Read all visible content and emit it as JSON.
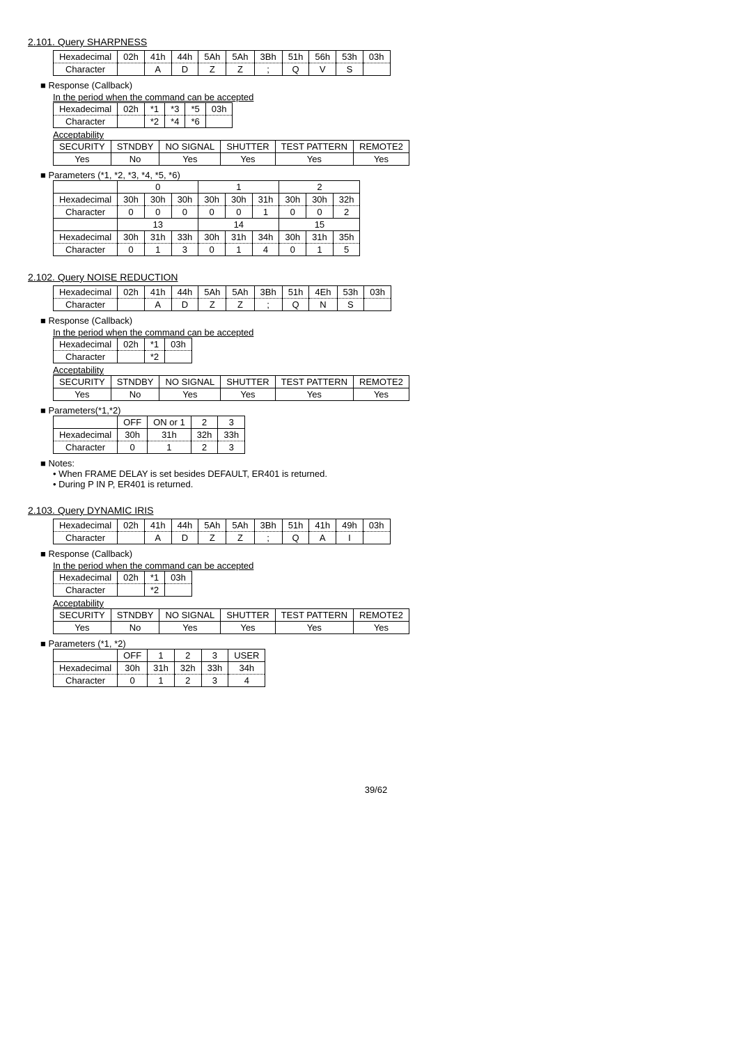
{
  "s1": {
    "title": "2.101. Query SHARPNESS",
    "cmd": {
      "r1": [
        "Hexadecimal",
        "02h",
        "41h",
        "44h",
        "5Ah",
        "5Ah",
        "3Bh",
        "51h",
        "56h",
        "53h",
        "03h"
      ],
      "r2": [
        "Character",
        "",
        "A",
        "D",
        "Z",
        "Z",
        ";",
        "Q",
        "V",
        "S",
        ""
      ]
    },
    "resp_hdr": "Response (Callback)",
    "resp_sub": "In the period when the command can be accepted",
    "resp_tbl": {
      "r1": [
        "Hexadecimal",
        "02h",
        "*1",
        "*3",
        "*5",
        "03h"
      ],
      "r2": [
        "Character",
        "",
        "*2",
        "*4",
        "*6",
        ""
      ]
    },
    "acc_hdr": "Acceptability",
    "acc_tbl": {
      "r1": [
        "SECURITY",
        "STNDBY",
        "NO SIGNAL",
        "SHUTTER",
        "TEST PATTERN",
        "REMOTE2"
      ],
      "r2": [
        "Yes",
        "No",
        "Yes",
        "Yes",
        "Yes",
        "Yes"
      ]
    },
    "param_hdr": "Parameters (*1, *2, *3, *4, *5, *6)",
    "param_tbl": {
      "h1": [
        "",
        "0",
        "",
        "",
        "1",
        "",
        "",
        "2",
        ""
      ],
      "r1": [
        "Hexadecimal",
        "30h",
        "30h",
        "30h",
        "30h",
        "30h",
        "31h",
        "30h",
        "30h",
        "32h"
      ],
      "r2": [
        "Character",
        "0",
        "0",
        "0",
        "0",
        "0",
        "1",
        "0",
        "0",
        "2"
      ],
      "h2": [
        "",
        "13",
        "",
        "",
        "14",
        "",
        "",
        "15",
        ""
      ],
      "r3": [
        "Hexadecimal",
        "30h",
        "31h",
        "33h",
        "30h",
        "31h",
        "34h",
        "30h",
        "31h",
        "35h"
      ],
      "r4": [
        "Character",
        "0",
        "1",
        "3",
        "0",
        "1",
        "4",
        "0",
        "1",
        "5"
      ]
    }
  },
  "s2": {
    "title": "2.102. Query NOISE REDUCTION",
    "cmd": {
      "r1": [
        "Hexadecimal",
        "02h",
        "41h",
        "44h",
        "5Ah",
        "5Ah",
        "3Bh",
        "51h",
        "4Eh",
        "53h",
        "03h"
      ],
      "r2": [
        "Character",
        "",
        "A",
        "D",
        "Z",
        "Z",
        ";",
        "Q",
        "N",
        "S",
        ""
      ]
    },
    "resp_hdr": "Response (Callback)",
    "resp_sub": "In the period when the command can be accepted",
    "resp_tbl": {
      "r1": [
        "Hexadecimal",
        "02h",
        "*1",
        "03h"
      ],
      "r2": [
        "Character",
        "",
        "*2",
        ""
      ]
    },
    "acc_hdr": "Acceptability",
    "acc_tbl": {
      "r1": [
        "SECURITY",
        "STNDBY",
        "NO SIGNAL",
        "SHUTTER",
        "TEST PATTERN",
        "REMOTE2"
      ],
      "r2": [
        "Yes",
        "No",
        "Yes",
        "Yes",
        "Yes",
        "Yes"
      ]
    },
    "param_hdr": "Parameters(*1,*2)",
    "param_tbl": {
      "h": [
        "",
        "OFF",
        "ON or 1",
        "2",
        "3"
      ],
      "r1": [
        "Hexadecimal",
        "30h",
        "31h",
        "32h",
        "33h"
      ],
      "r2": [
        "Character",
        "0",
        "1",
        "2",
        "3"
      ]
    },
    "notes_hdr": "Notes:",
    "notes": [
      "• When FRAME DELAY is set besides DEFAULT, ER401 is returned.",
      "• During P IN P, ER401 is returned."
    ]
  },
  "s3": {
    "title": "2.103. Query DYNAMIC IRIS",
    "cmd": {
      "r1": [
        "Hexadecimal",
        "02h",
        "41h",
        "44h",
        "5Ah",
        "5Ah",
        "3Bh",
        "51h",
        "41h",
        "49h",
        "03h"
      ],
      "r2": [
        "Character",
        "",
        "A",
        "D",
        "Z",
        "Z",
        ";",
        "Q",
        "A",
        "I",
        ""
      ]
    },
    "resp_hdr": "Response (Callback)",
    "resp_sub": "In the period when the command can be accepted",
    "resp_tbl": {
      "r1": [
        "Hexadecimal",
        "02h",
        "*1",
        "03h"
      ],
      "r2": [
        "Character",
        "",
        "*2",
        ""
      ]
    },
    "acc_hdr": "Acceptability",
    "acc_tbl": {
      "r1": [
        "SECURITY",
        "STNDBY",
        "NO SIGNAL",
        "SHUTTER",
        "TEST PATTERN",
        "REMOTE2"
      ],
      "r2": [
        "Yes",
        "No",
        "Yes",
        "Yes",
        "Yes",
        "Yes"
      ]
    },
    "param_hdr": "Parameters (*1, *2)",
    "param_tbl": {
      "h": [
        "",
        "OFF",
        "1",
        "2",
        "3",
        "USER"
      ],
      "r1": [
        "Hexadecimal",
        "30h",
        "31h",
        "32h",
        "33h",
        "34h"
      ],
      "r2": [
        "Character",
        "0",
        "1",
        "2",
        "3",
        "4"
      ]
    }
  },
  "page": "39/62"
}
